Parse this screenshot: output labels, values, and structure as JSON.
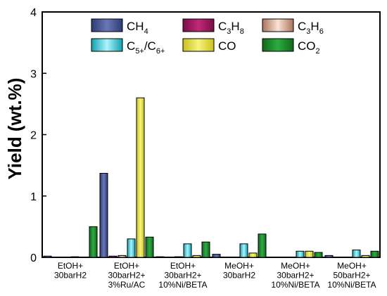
{
  "chart_data": {
    "type": "bar",
    "ylabel": "Yield (wt.%)",
    "ylim": [
      0,
      4
    ],
    "yticks": [
      "0",
      "1",
      "2",
      "3",
      "4"
    ],
    "categories": [
      [
        "EtOH+",
        "30barH2"
      ],
      [
        "EtOH+",
        "30barH2+",
        "3%Ru/AC"
      ],
      [
        "EtOH+",
        "30barH2+",
        "10%Ni/BETA"
      ],
      [
        "MeOH+",
        "30barH2"
      ],
      [
        "MeOH+",
        "30barH2+",
        "10%Ni/BETA"
      ],
      [
        "MeOH+",
        "50barH2+",
        "10%Ni/BETA"
      ]
    ],
    "legend_position": "top",
    "series": [
      {
        "name": "CH4",
        "label_base": "CH",
        "label_sub": "4",
        "label_mid": "",
        "label_sub2": "",
        "color": "#3b4a8a",
        "values": [
          0.02,
          1.37,
          0.01,
          0.05,
          0.0,
          0.03
        ]
      },
      {
        "name": "C3H8",
        "label_base": "C",
        "label_sub": "3",
        "label_mid": "H",
        "label_sub2": "8",
        "color": "#a0145a",
        "values": [
          0.0,
          0.02,
          0.0,
          0.0,
          0.0,
          0.0
        ]
      },
      {
        "name": "C3H6",
        "label_base": "C",
        "label_sub": "3",
        "label_mid": "H",
        "label_sub2": "6",
        "color": "#e0b49a",
        "values": [
          0.0,
          0.03,
          0.01,
          0.0,
          0.0,
          0.0
        ]
      },
      {
        "name": "C5+/C6+",
        "label_base": "C",
        "label_sub": "5+",
        "label_mid": "/C",
        "label_sub2": "6+",
        "color": "#2cc6d6",
        "values": [
          0.01,
          0.3,
          0.22,
          0.22,
          0.1,
          0.12
        ]
      },
      {
        "name": "CO",
        "label_base": "CO",
        "label_sub": "",
        "label_mid": "",
        "label_sub2": "",
        "color": "#e2dc3a",
        "values": [
          0.0,
          2.6,
          0.03,
          0.07,
          0.1,
          0.03
        ]
      },
      {
        "name": "CO2",
        "label_base": "CO",
        "label_sub": "2",
        "label_mid": "",
        "label_sub2": "",
        "color": "#1b8a2a",
        "values": [
          0.5,
          0.33,
          0.25,
          0.38,
          0.08,
          0.1
        ]
      }
    ]
  }
}
